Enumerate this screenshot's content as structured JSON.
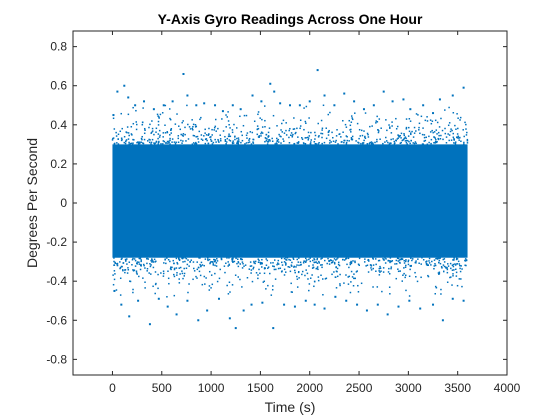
{
  "chart_data": {
    "type": "scatter",
    "title": "Y-Axis Gyro Readings Across One Hour",
    "xlabel": "Time (s)",
    "ylabel": "Degrees Per Second",
    "xlim": [
      -400,
      4000
    ],
    "ylim": [
      -0.88,
      0.88
    ],
    "xticks": [
      0,
      500,
      1000,
      1500,
      2000,
      2500,
      3000,
      3500,
      4000
    ],
    "xtick_labels": [
      "0",
      "500",
      "1000",
      "1500",
      "2000",
      "2500",
      "3000",
      "3500",
      "4000"
    ],
    "yticks": [
      -0.8,
      -0.6,
      -0.4,
      -0.2,
      0,
      0.2,
      0.4,
      0.6,
      0.8
    ],
    "ytick_labels": [
      "-0.8",
      "-0.6",
      "-0.4",
      "-0.2",
      "0",
      "0.2",
      "0.4",
      "0.6",
      "0.8"
    ],
    "grid": false,
    "series": [
      {
        "color": "#0072BD",
        "x_range": [
          0,
          3600
        ],
        "dense_band": [
          -0.28,
          0.3
        ],
        "points": [
          [
            10,
            0.45
          ],
          [
            50,
            0.57
          ],
          [
            120,
            0.6
          ],
          [
            160,
            0.54
          ],
          [
            230,
            0.5
          ],
          [
            320,
            0.52
          ],
          [
            420,
            0.48
          ],
          [
            520,
            0.5
          ],
          [
            610,
            0.52
          ],
          [
            720,
            0.66
          ],
          [
            760,
            0.55
          ],
          [
            850,
            0.5
          ],
          [
            930,
            0.51
          ],
          [
            1040,
            0.5
          ],
          [
            1120,
            0.47
          ],
          [
            1220,
            0.5
          ],
          [
            1300,
            0.48
          ],
          [
            1420,
            0.55
          ],
          [
            1510,
            0.52
          ],
          [
            1600,
            0.61
          ],
          [
            1640,
            0.57
          ],
          [
            1700,
            0.51
          ],
          [
            1800,
            0.5
          ],
          [
            1900,
            0.5
          ],
          [
            2000,
            0.52
          ],
          [
            2080,
            0.68
          ],
          [
            2150,
            0.55
          ],
          [
            2250,
            0.5
          ],
          [
            2350,
            0.56
          ],
          [
            2450,
            0.52
          ],
          [
            2550,
            0.48
          ],
          [
            2650,
            0.5
          ],
          [
            2750,
            0.57
          ],
          [
            2840,
            0.52
          ],
          [
            2950,
            0.53
          ],
          [
            3020,
            0.48
          ],
          [
            3150,
            0.5
          ],
          [
            3250,
            0.46
          ],
          [
            3320,
            0.53
          ],
          [
            3450,
            0.55
          ],
          [
            3560,
            0.59
          ],
          [
            20,
            -0.45
          ],
          [
            90,
            -0.52
          ],
          [
            170,
            -0.58
          ],
          [
            260,
            -0.5
          ],
          [
            380,
            -0.62
          ],
          [
            470,
            -0.49
          ],
          [
            560,
            -0.53
          ],
          [
            650,
            -0.57
          ],
          [
            760,
            -0.5
          ],
          [
            870,
            -0.6
          ],
          [
            960,
            -0.55
          ],
          [
            1080,
            -0.49
          ],
          [
            1190,
            -0.59
          ],
          [
            1250,
            -0.64
          ],
          [
            1330,
            -0.55
          ],
          [
            1410,
            -0.52
          ],
          [
            1520,
            -0.51
          ],
          [
            1630,
            -0.64
          ],
          [
            1740,
            -0.52
          ],
          [
            1850,
            -0.53
          ],
          [
            1960,
            -0.5
          ],
          [
            2050,
            -0.52
          ],
          [
            2150,
            -0.54
          ],
          [
            2260,
            -0.48
          ],
          [
            2370,
            -0.5
          ],
          [
            2480,
            -0.52
          ],
          [
            2580,
            -0.55
          ],
          [
            2690,
            -0.52
          ],
          [
            2790,
            -0.57
          ],
          [
            2900,
            -0.53
          ],
          [
            3010,
            -0.5
          ],
          [
            3120,
            -0.54
          ],
          [
            3250,
            -0.52
          ],
          [
            3350,
            -0.6
          ],
          [
            3450,
            -0.49
          ],
          [
            3560,
            -0.5
          ]
        ]
      }
    ]
  }
}
